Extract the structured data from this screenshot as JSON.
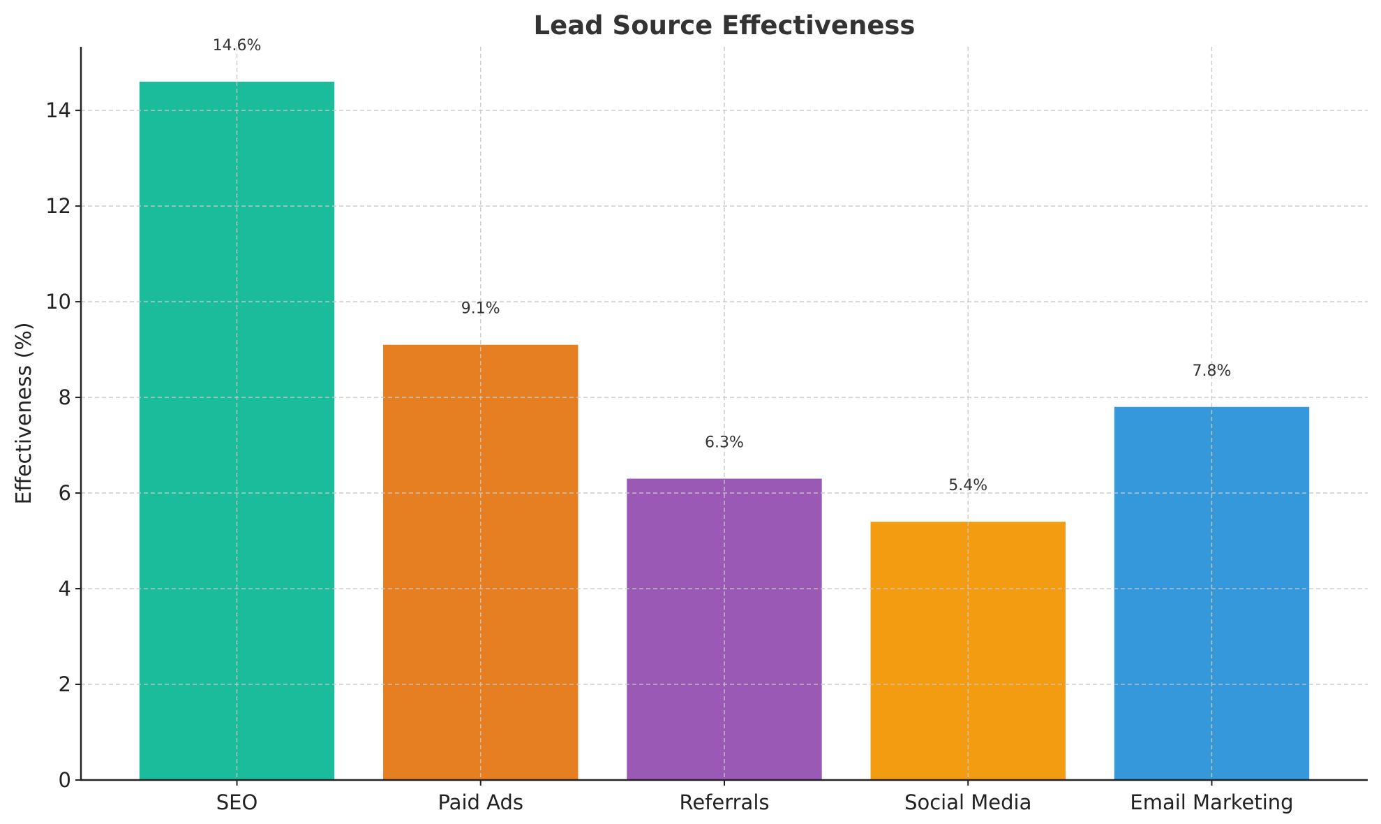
{
  "chart_data": {
    "type": "bar",
    "title": "Lead Source Effectiveness",
    "xlabel": "",
    "ylabel": "Effectiveness (%)",
    "categories": [
      "SEO",
      "Paid Ads",
      "Referrals",
      "Social Media",
      "Email Marketing"
    ],
    "values": [
      14.6,
      9.1,
      6.3,
      5.4,
      7.8
    ],
    "data_labels": [
      "14.6%",
      "9.1%",
      "6.3%",
      "5.4%",
      "7.8%"
    ],
    "colors": [
      "#1abc9c",
      "#e67e22",
      "#9b59b6",
      "#f39c12",
      "#3498db"
    ],
    "ylim": [
      0,
      15.33
    ],
    "yticks": [
      0,
      2,
      4,
      6,
      8,
      10,
      12,
      14
    ],
    "grid": true,
    "grid_style": "dashed"
  }
}
